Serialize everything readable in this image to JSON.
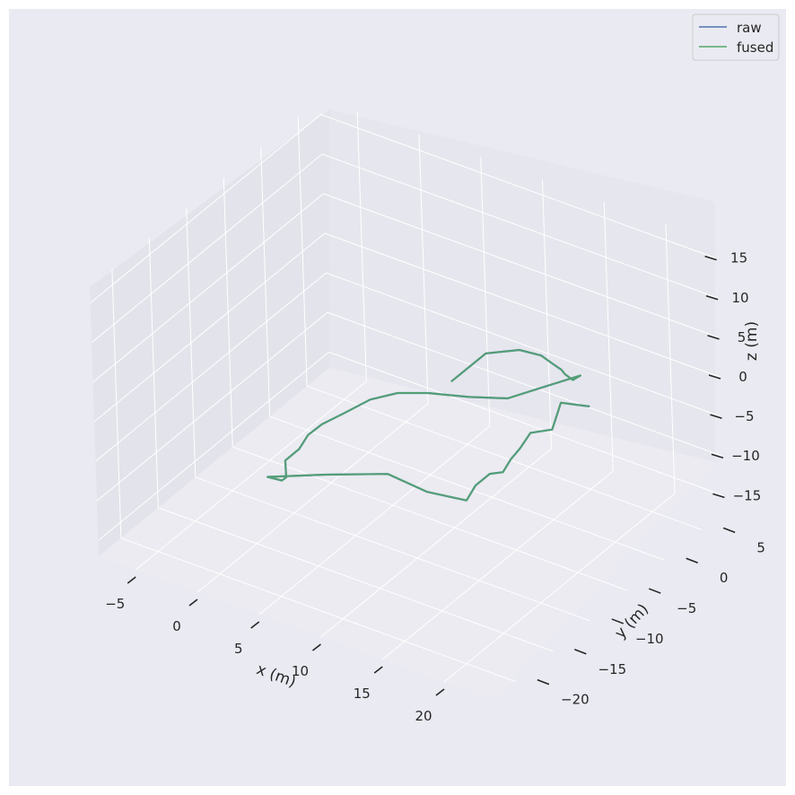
{
  "chart_data": {
    "type": "line",
    "projection": "3d",
    "style": "seaborn-darkgrid",
    "xlabel": "x (m)",
    "ylabel": "y (m)",
    "zlabel": "z (m)",
    "xticks": [
      "−5",
      "0",
      "5",
      "10",
      "15",
      "20"
    ],
    "yticks": [
      "−20",
      "−15",
      "−10",
      "−5",
      "0",
      "5"
    ],
    "zticks": [
      "−15",
      "−10",
      "−5",
      "0",
      "5",
      "10",
      "15"
    ],
    "legend_position": "top-right",
    "colors": {
      "raw": "#4c72b0",
      "fused": "#55a868",
      "background": "#eaeaf2",
      "grid": "#ffffff"
    },
    "series": [
      {
        "name": "raw",
        "color": "#4c72b0",
        "x": [
          10.1,
          11.4,
          12.6,
          12.8,
          12.1,
          11.3,
          10.0,
          9.0,
          8.0,
          6.4,
          5.1,
          3.5,
          1.7,
          0.8,
          0.1,
          -0.4,
          -0.8,
          -0.4,
          0.4,
          0.8,
          2.4,
          3.6,
          4.0,
          8.0,
          12.5,
          15.0,
          17.5,
          17.6,
          18.1,
          18.5,
          18.5,
          18.6,
          18.8,
          19.9,
          20.0,
          21.6
        ],
        "y": [
          -4.9,
          -2.4,
          0.1,
          2.6,
          5.1,
          7.6,
          10.1,
          12.7,
          15.3,
          12.8,
          10.3,
          7.8,
          5.3,
          2.8,
          0.3,
          -2.2,
          -4.7,
          -7.2,
          -9.7,
          -12.2,
          -14.7,
          -17.2,
          -19.7,
          -18.6,
          -17.5,
          -16.4,
          -15.3,
          -14.2,
          -13.1,
          -12.0,
          -10.9,
          -9.8,
          -8.7,
          -7.6,
          -6.5,
          -5.4
        ],
        "z": [
          1.5,
          3.8,
          3.0,
          0.5,
          -2.8,
          -6.0,
          -9.2,
          -12.5,
          -14.5,
          -15.0,
          -15.2,
          -14.0,
          -12.6,
          -11.2,
          -10.5,
          -10.5,
          -10.3,
          -9.5,
          -8.9,
          -8.2,
          -7.5,
          -5.3,
          -2.7,
          -1.0,
          0.8,
          -0.9,
          -1.4,
          -0.3,
          0.6,
          0.2,
          1.0,
          1.6,
          2.8,
          3.0,
          5.6,
          5.2
        ]
      },
      {
        "name": "fused",
        "color": "#55a868",
        "x": [
          10.1,
          11.4,
          12.6,
          12.8,
          12.1,
          11.3,
          10.0,
          9.0,
          8.0,
          6.4,
          5.1,
          3.5,
          1.7,
          0.8,
          0.1,
          -0.4,
          -0.8,
          -0.4,
          0.4,
          0.8,
          2.4,
          3.6,
          4.0,
          8.0,
          12.5,
          15.0,
          17.5,
          17.6,
          18.1,
          18.5,
          18.5,
          18.6,
          18.8,
          19.9,
          20.0,
          21.6
        ],
        "y": [
          -4.9,
          -2.4,
          0.1,
          2.6,
          5.1,
          7.6,
          10.1,
          12.7,
          15.3,
          12.8,
          10.3,
          7.8,
          5.3,
          2.8,
          0.3,
          -2.2,
          -4.7,
          -7.2,
          -9.7,
          -12.2,
          -14.7,
          -17.2,
          -19.7,
          -18.6,
          -17.5,
          -16.4,
          -15.3,
          -14.2,
          -13.1,
          -12.0,
          -10.9,
          -9.8,
          -8.7,
          -7.6,
          -6.5,
          -5.4
        ],
        "z": [
          1.5,
          3.8,
          3.0,
          0.5,
          -2.8,
          -6.0,
          -9.2,
          -12.5,
          -14.5,
          -15.0,
          -15.2,
          -14.0,
          -12.6,
          -11.2,
          -10.5,
          -10.5,
          -10.3,
          -9.5,
          -8.9,
          -8.2,
          -7.5,
          -5.3,
          -2.7,
          -1.0,
          0.8,
          -0.9,
          -1.4,
          -0.3,
          0.6,
          0.2,
          1.0,
          1.6,
          2.8,
          3.0,
          5.6,
          5.2
        ]
      }
    ]
  }
}
